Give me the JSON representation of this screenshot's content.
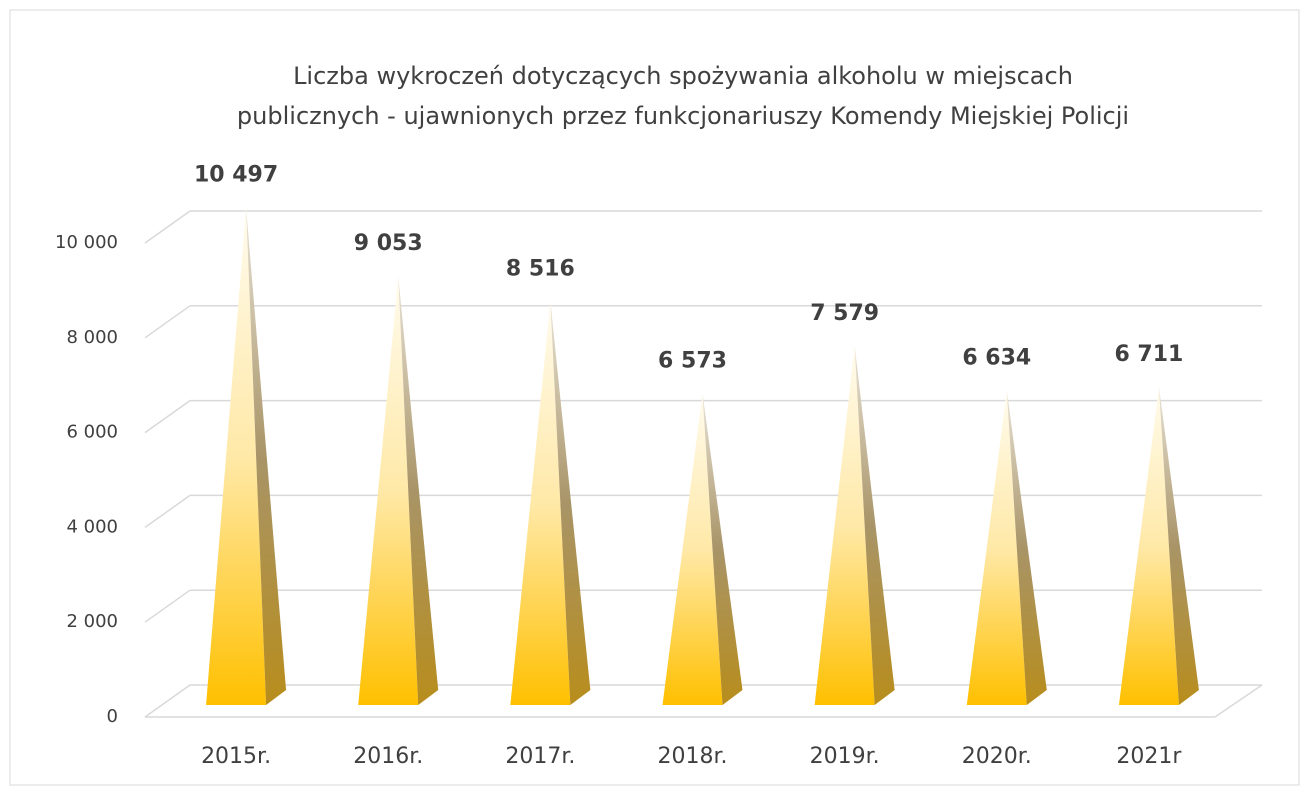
{
  "chart_data": {
    "type": "pyramid",
    "title": [
      "Liczba wykroczeń dotyczących spożywania alkoholu  w miejscach",
      "publicznych - ujawnionych przez funkcjonariuszy Komendy Miejskiej Policji"
    ],
    "categories": [
      "2015r.",
      "2016r.",
      "2017r.",
      "2018r.",
      "2019r.",
      "2020r.",
      "2021r"
    ],
    "values": [
      10497,
      9053,
      8516,
      6573,
      7579,
      6634,
      6711
    ],
    "value_labels": [
      "10 497",
      "9 053",
      "8 516",
      "6 573",
      "7 579",
      "6 634",
      "6 711"
    ],
    "color": "#ffc000",
    "ylim": [
      0,
      10000
    ],
    "yticks": [
      0,
      {
        "value": 2000,
        "label": "2 000"
      },
      {
        "value": 4000,
        "label": "4 000"
      },
      {
        "value": 6000,
        "label": "6 000"
      },
      {
        "value": 8000,
        "label": "8 000"
      },
      {
        "value": 10000,
        "label": "10 000"
      }
    ],
    "grid": true
  }
}
